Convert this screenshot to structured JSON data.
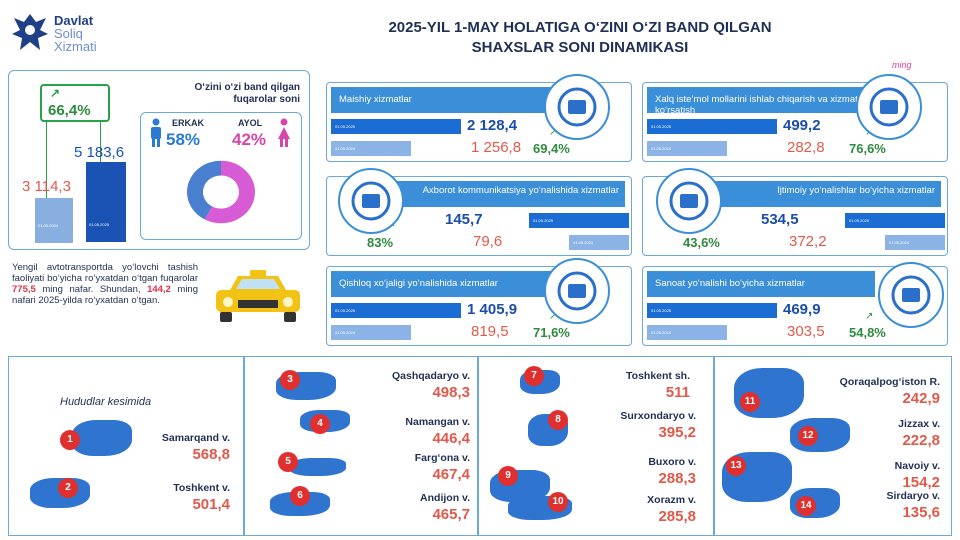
{
  "logo": {
    "line1": "Davlat",
    "line2": "Soliq",
    "line3": "Xizmati"
  },
  "title": {
    "line1": "2025-YIL 1-MAY HOLATIGA O‘ZINI O‘ZI BAND QILGAN",
    "line2": "SHAXSLAR SONI DINAMIKASI"
  },
  "unit": "ming",
  "summary": {
    "growth_pct": "66,4%",
    "value_old": "3 114,3",
    "value_new": "5 183,6",
    "date_old": "01.05.2024",
    "date_new": "01.05.2025"
  },
  "gender": {
    "title": "O‘zini o‘zi band qilgan fuqarolar soni",
    "male_label": "ERKAK",
    "male_pct": "58%",
    "female_label": "AYOL",
    "female_pct": "42%",
    "male_fraction": 0.58,
    "female_fraction": 0.42,
    "colors": {
      "male": "#4a7fd0",
      "female": "#d65bd4"
    }
  },
  "note": {
    "part1": "Yengil avtotransportda yo‘lovchi tashish faoliyati bo‘yicha ro‘yxatdan o‘tgan fuqarolar ",
    "bold1": "775,5",
    "part2": " ming nafar. Shundan, ",
    "bold2": "144,2",
    "part3": " ming nafari 2025-yilda ro‘yxatdan o‘tgan."
  },
  "sectors": [
    {
      "title": "Maishiy xizmatlar",
      "new": "2 128,4",
      "old": "1 256,8",
      "pct": "69,4%",
      "date_new": "01.05.2025",
      "date_old": "01.05.2024"
    },
    {
      "title": "Xalq iste’mol mollarini ishlab chiqarish va xizmatlar ko‘rsatish",
      "new": "499,2",
      "old": "282,8",
      "pct": "76,6%",
      "date_new": "01.05.2025",
      "date_old": "01.05.2024"
    },
    {
      "title": "Axborot kommunikatsiya yo‘nalishida xizmatlar",
      "new": "145,7",
      "old": "79,6",
      "pct": "83%",
      "date_new": "01.05.2025",
      "date_old": "01.05.2024"
    },
    {
      "title": "Ijtimoiy yo‘nalishlar bo‘yicha xizmatlar",
      "new": "534,5",
      "old": "372,2",
      "pct": "43,6%",
      "date_new": "01.05.2025",
      "date_old": "01.05.2024"
    },
    {
      "title": "Qishloq xo‘jaligi yo‘nalishida xizmatlar",
      "new": "1 405,9",
      "old": "819,5",
      "pct": "71,6%",
      "date_new": "01.05.2025",
      "date_old": "01.05.2024"
    },
    {
      "title": "Sanoat yo‘nalishi bo‘yicha xizmatlar",
      "new": "469,9",
      "old": "303,5",
      "pct": "54,8%",
      "date_new": "01.05.2025",
      "date_old": "01.05.2024"
    }
  ],
  "regions_heading": "Hududlar kesimida",
  "regions": [
    {
      "n": "1",
      "name": "Samarqand v.",
      "value": "568,8"
    },
    {
      "n": "2",
      "name": "Toshkent v.",
      "value": "501,4"
    },
    {
      "n": "3",
      "name": "Qashqadaryo v.",
      "value": "498,3"
    },
    {
      "n": "4",
      "name": "Namangan v.",
      "value": "446,4"
    },
    {
      "n": "5",
      "name": "Farg‘ona v.",
      "value": "467,4"
    },
    {
      "n": "6",
      "name": "Andijon v.",
      "value": "465,7"
    },
    {
      "n": "7",
      "name": "Toshkent sh.",
      "value": "511"
    },
    {
      "n": "8",
      "name": "Surxondaryo v.",
      "value": "395,2"
    },
    {
      "n": "9",
      "name": "Buxoro v.",
      "value": "288,3"
    },
    {
      "n": "10",
      "name": "Xorazm v.",
      "value": "285,8"
    },
    {
      "n": "11",
      "name": "Qoraqalpog‘iston R.",
      "value": "242,9"
    },
    {
      "n": "12",
      "name": "Jizzax v.",
      "value": "222,8"
    },
    {
      "n": "13",
      "name": "Navoiy v.",
      "value": "154,2"
    },
    {
      "n": "14",
      "name": "Sirdaryo v.",
      "value": "135,6"
    }
  ]
}
